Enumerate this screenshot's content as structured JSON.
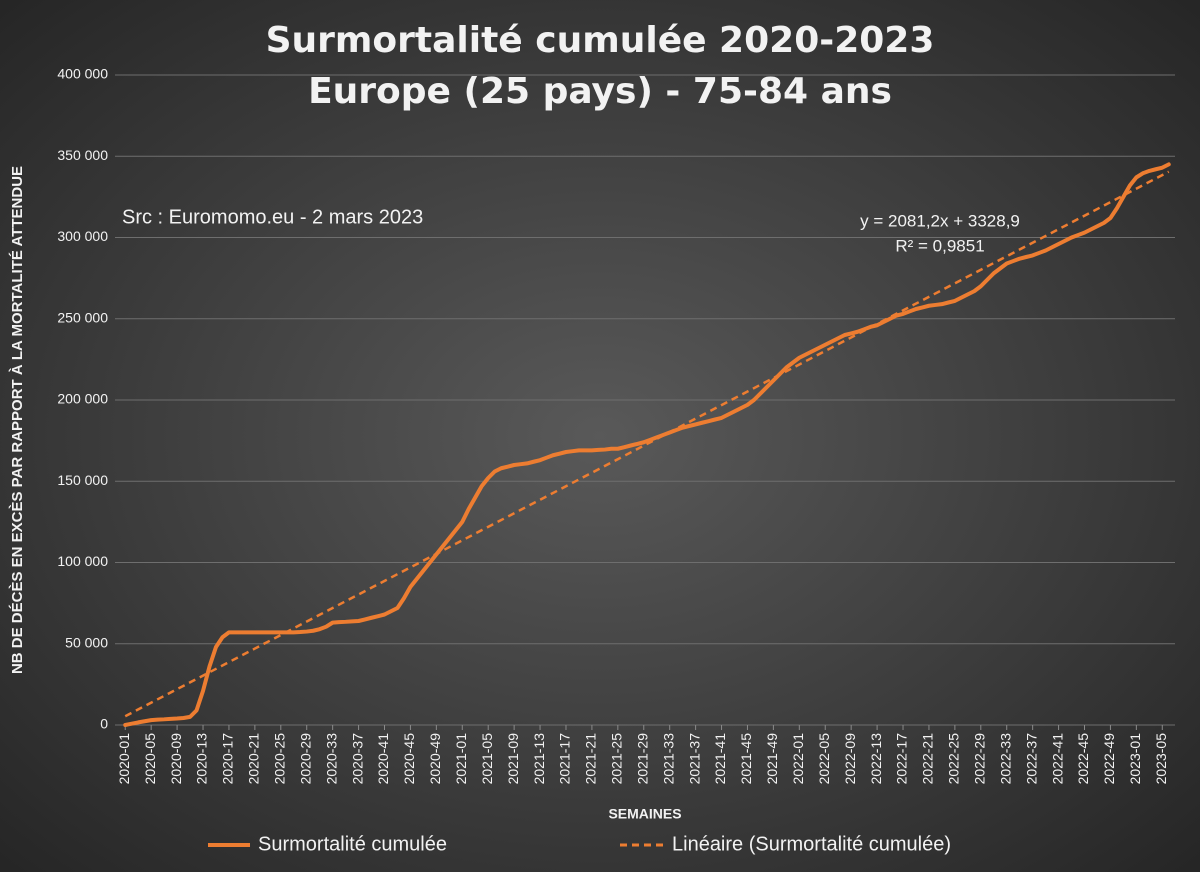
{
  "chart_data": {
    "type": "line",
    "title": "Surmortalité cumulée 2020-2023",
    "subtitle": "Europe (25 pays) - 75-84 ans",
    "annotation": "Src : Euromomo.eu  - 2 mars 2023",
    "x_label": "SEMAINES",
    "y_label": "NB DE DÉCÈS EN EXCÈS PAR RAPPORT À LA MORTALITÉ ATTENDUE",
    "categories": [
      "2020-01",
      null,
      null,
      null,
      "2020-05",
      null,
      null,
      null,
      "2020-09",
      null,
      null,
      null,
      "2020-13",
      null,
      null,
      null,
      "2020-17",
      null,
      null,
      null,
      "2020-21",
      null,
      null,
      null,
      "2020-25",
      null,
      null,
      null,
      "2020-29",
      null,
      null,
      null,
      "2020-33",
      null,
      null,
      null,
      "2020-37",
      null,
      null,
      null,
      "2020-41",
      null,
      null,
      null,
      "2020-45",
      null,
      null,
      null,
      "2020-49",
      null,
      null,
      null,
      "2021-01",
      null,
      null,
      null,
      "2021-05",
      null,
      null,
      null,
      "2021-09",
      null,
      null,
      null,
      "2021-13",
      null,
      null,
      null,
      "2021-17",
      null,
      null,
      null,
      "2021-21",
      null,
      null,
      null,
      "2021-25",
      null,
      null,
      null,
      "2021-29",
      null,
      null,
      null,
      "2021-33",
      null,
      null,
      null,
      "2021-37",
      null,
      null,
      null,
      "2021-41",
      null,
      null,
      null,
      "2021-45",
      null,
      null,
      null,
      "2021-49",
      null,
      null,
      null,
      "2022-01",
      null,
      null,
      null,
      "2022-05",
      null,
      null,
      null,
      "2022-09",
      null,
      null,
      null,
      "2022-13",
      null,
      null,
      null,
      "2022-17",
      null,
      null,
      null,
      "2022-21",
      null,
      null,
      null,
      "2022-25",
      null,
      null,
      null,
      "2022-29",
      null,
      null,
      null,
      "2022-33",
      null,
      null,
      null,
      "2022-37",
      null,
      null,
      null,
      "2022-41",
      null,
      null,
      null,
      "2022-45",
      null,
      null,
      null,
      "2022-49",
      null,
      null,
      null,
      "2023-01",
      null,
      null,
      null,
      "2023-05",
      null
    ],
    "series": [
      {
        "name": "Surmortalité cumulée",
        "color": "#ed7d31",
        "values": [
          0,
          800,
          1600,
          2300,
          3000,
          3300,
          3500,
          3800,
          4000,
          4300,
          5000,
          9000,
          21000,
          36000,
          48000,
          54000,
          57000,
          57000,
          57000,
          57000,
          57000,
          57000,
          57000,
          57000,
          57000,
          57000,
          57000,
          57200,
          57500,
          58000,
          59000,
          60500,
          63000,
          63300,
          63500,
          63800,
          64000,
          65000,
          66000,
          67000,
          68000,
          70000,
          72000,
          78000,
          85000,
          90000,
          95000,
          100000,
          105000,
          110000,
          115000,
          120000,
          125000,
          133000,
          140000,
          147000,
          152000,
          156000,
          158000,
          159000,
          160000,
          160500,
          161000,
          162000,
          163000,
          164500,
          166000,
          167000,
          168000,
          168500,
          169000,
          169000,
          169000,
          169300,
          169500,
          170000,
          170000,
          171000,
          172000,
          173000,
          174000,
          175500,
          177000,
          178500,
          180000,
          181500,
          183000,
          184000,
          185000,
          186000,
          187000,
          188000,
          189000,
          191000,
          193000,
          195000,
          197000,
          200000,
          204000,
          208000,
          212000,
          216000,
          220000,
          223000,
          226000,
          228000,
          230000,
          232000,
          234000,
          236000,
          238000,
          240000,
          241000,
          242000,
          243500,
          245000,
          246000,
          248000,
          250000,
          252000,
          253000,
          254500,
          256000,
          257000,
          258000,
          258500,
          259000,
          260000,
          261000,
          263000,
          265000,
          267000,
          270000,
          274000,
          278000,
          281000,
          284000,
          285500,
          287000,
          288000,
          289000,
          290500,
          292000,
          294000,
          296000,
          298000,
          300000,
          301500,
          303000,
          305000,
          307000,
          309000,
          312000,
          318000,
          325000,
          332000,
          337000,
          339500,
          341000,
          342000,
          343000,
          345000
        ]
      }
    ],
    "trendline": {
      "name": "Linéaire (Surmortalité cumulée)",
      "color": "#ed7d31",
      "slope": 2081.2,
      "intercept": 3328.9,
      "equation": "y = 2081,2x + 3328,9",
      "r2_label": "R² = 0,9851"
    },
    "ylim": [
      0,
      400000
    ],
    "yticks": [
      0,
      {
        "value": 50000,
        "label": "50 000"
      },
      {
        "value": 100000,
        "label": "100 000"
      },
      {
        "value": 150000,
        "label": "150 000"
      },
      {
        "value": 200000,
        "label": "200 000"
      },
      {
        "value": 250000,
        "label": "250 000"
      },
      {
        "value": 300000,
        "label": "300 000"
      },
      {
        "value": 350000,
        "label": "350 000"
      },
      {
        "value": 400000,
        "label": "400 000"
      }
    ],
    "grid": true,
    "legend": "bottom"
  }
}
